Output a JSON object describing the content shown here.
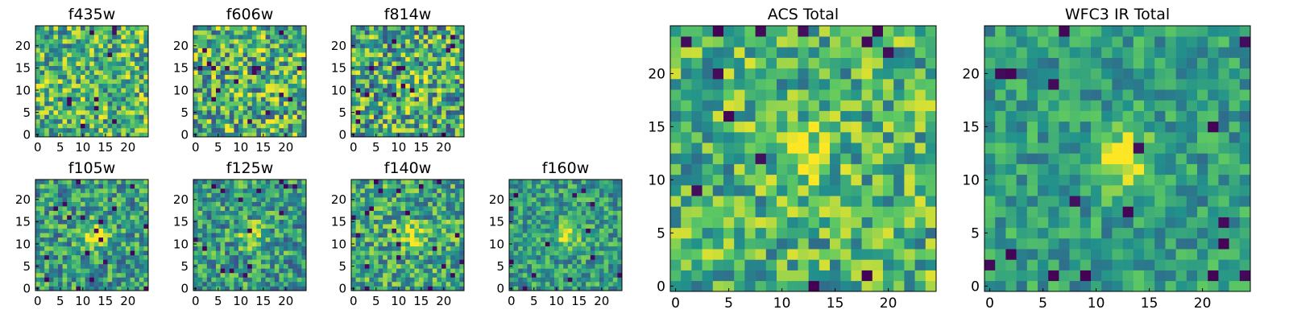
{
  "figure": {
    "colormap": "viridis",
    "colormap_stops": [
      "#440154",
      "#3b528b",
      "#21918c",
      "#5ec962",
      "#fde725"
    ]
  },
  "chart_data": [
    {
      "type": "heatmap",
      "title": "f435w",
      "grid_size": 25,
      "xlim": [
        0,
        24
      ],
      "ylim": [
        0,
        24
      ],
      "xticks": [
        "0",
        "5",
        "10",
        "15",
        "20"
      ],
      "yticks": [
        "0",
        "5",
        "10",
        "15",
        "20"
      ],
      "values_note_seed": 11,
      "mean_level": 0.65,
      "noise": 0.35,
      "blob": 0.0
    },
    {
      "type": "heatmap",
      "title": "f606w",
      "grid_size": 25,
      "xlim": [
        0,
        24
      ],
      "ylim": [
        0,
        24
      ],
      "xticks": [
        "0",
        "5",
        "10",
        "15",
        "20"
      ],
      "yticks": [
        "0",
        "5",
        "10",
        "15",
        "20"
      ],
      "values_note_seed": 23,
      "mean_level": 0.65,
      "noise": 0.4,
      "blob": 0.0
    },
    {
      "type": "heatmap",
      "title": "f814w",
      "grid_size": 25,
      "xlim": [
        0,
        24
      ],
      "ylim": [
        0,
        24
      ],
      "xticks": [
        "0",
        "5",
        "10",
        "15",
        "20"
      ],
      "yticks": [
        "0",
        "5",
        "10",
        "15",
        "20"
      ],
      "values_note_seed": 37,
      "mean_level": 0.6,
      "noise": 0.4,
      "blob": 0.15
    },
    {
      "type": "heatmap",
      "title": "f105w",
      "grid_size": 25,
      "xlim": [
        0,
        24
      ],
      "ylim": [
        0,
        24
      ],
      "xticks": [
        "0",
        "5",
        "10",
        "15",
        "20"
      ],
      "yticks": [
        "0",
        "5",
        "10",
        "15",
        "20"
      ],
      "values_note_seed": 41,
      "mean_level": 0.55,
      "noise": 0.3,
      "blob": 0.4
    },
    {
      "type": "heatmap",
      "title": "f125w",
      "grid_size": 25,
      "xlim": [
        0,
        24
      ],
      "ylim": [
        0,
        24
      ],
      "xticks": [
        "0",
        "5",
        "10",
        "15",
        "20"
      ],
      "yticks": [
        "0",
        "5",
        "10",
        "15",
        "20"
      ],
      "values_note_seed": 53,
      "mean_level": 0.55,
      "noise": 0.3,
      "blob": 0.35
    },
    {
      "type": "heatmap",
      "title": "f140w",
      "grid_size": 25,
      "xlim": [
        0,
        24
      ],
      "ylim": [
        0,
        24
      ],
      "xticks": [
        "0",
        "5",
        "10",
        "15",
        "20"
      ],
      "yticks": [
        "0",
        "5",
        "10",
        "15",
        "20"
      ],
      "values_note_seed": 67,
      "mean_level": 0.6,
      "noise": 0.3,
      "blob": 0.3
    },
    {
      "type": "heatmap",
      "title": "f160w",
      "grid_size": 25,
      "xlim": [
        0,
        24
      ],
      "ylim": [
        0,
        24
      ],
      "xticks": [
        "0",
        "5",
        "10",
        "15",
        "20"
      ],
      "yticks": [
        "0",
        "5",
        "10",
        "15",
        "20"
      ],
      "values_note_seed": 79,
      "mean_level": 0.55,
      "noise": 0.25,
      "blob": 0.4
    },
    {
      "type": "heatmap",
      "title": "ACS Total",
      "grid_size": 25,
      "xlim": [
        0,
        24
      ],
      "ylim": [
        0,
        24
      ],
      "xticks": [
        "0",
        "5",
        "10",
        "15",
        "20"
      ],
      "yticks": [
        "0",
        "5",
        "10",
        "15",
        "20"
      ],
      "values_note_seed": 97,
      "mean_level": 0.65,
      "noise": 0.3,
      "blob": 0.2
    },
    {
      "type": "heatmap",
      "title": "WFC3 IR Total",
      "grid_size": 25,
      "xlim": [
        0,
        24
      ],
      "ylim": [
        0,
        24
      ],
      "xticks": [
        "0",
        "5",
        "10",
        "15",
        "20"
      ],
      "yticks": [
        "0",
        "5",
        "10",
        "15",
        "20"
      ],
      "values_note_seed": 113,
      "mean_level": 0.55,
      "noise": 0.2,
      "blob": 0.45
    }
  ]
}
